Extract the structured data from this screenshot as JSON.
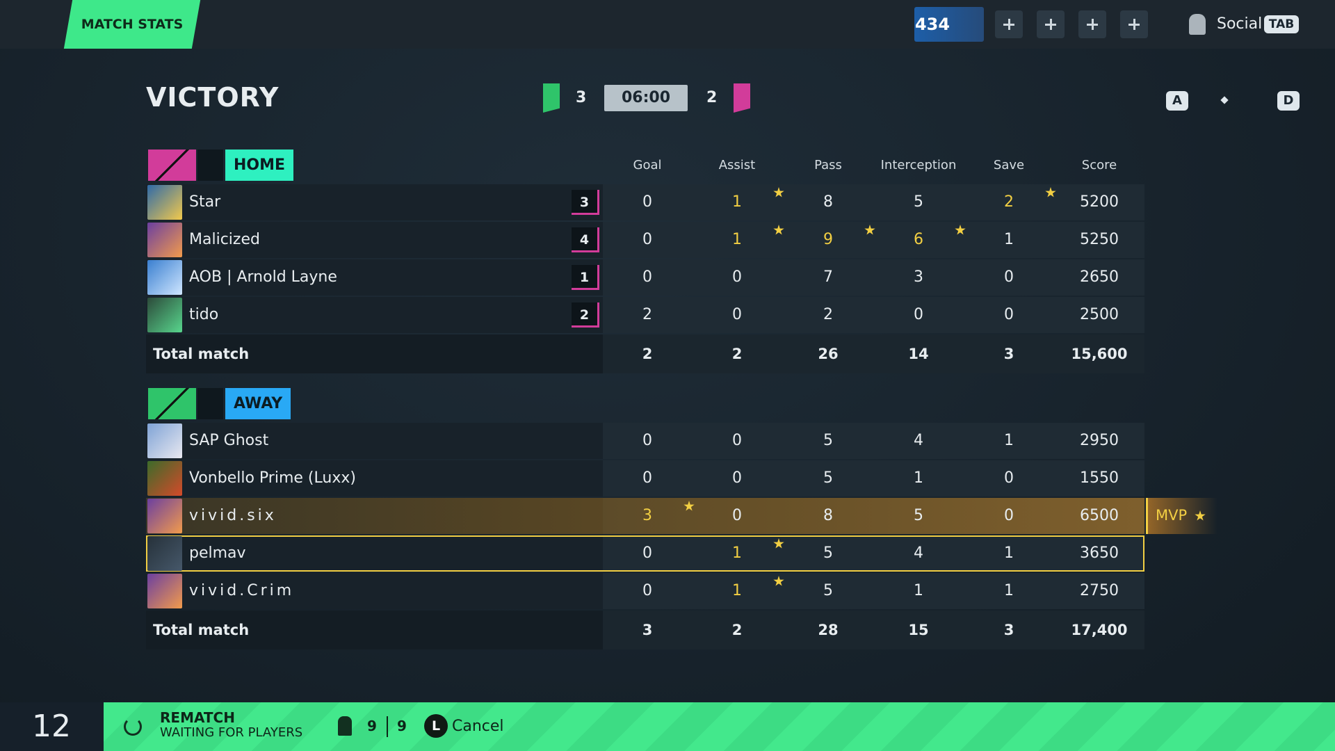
{
  "header": {
    "tab": "MATCH STATS",
    "level": 434,
    "social": "Social",
    "social_key": "TAB"
  },
  "result": {
    "title": "VICTORY",
    "home_score": 3,
    "time": "06:00",
    "away_score": 2
  },
  "controls": {
    "key_left": "A",
    "key_right": "D"
  },
  "columns": [
    "Goal",
    "Assist",
    "Pass",
    "Interception",
    "Save",
    "Score"
  ],
  "mvp_label": "MVP",
  "home": {
    "label": "HOME",
    "total_label": "Total match",
    "totals": [
      2,
      2,
      26,
      14,
      3,
      "15,600"
    ],
    "players": [
      {
        "name": "Star",
        "level": 3,
        "stats": [
          0,
          1,
          8,
          5,
          2,
          5200
        ],
        "highlights": [
          1,
          4
        ]
      },
      {
        "name": "Malicized",
        "level": 4,
        "stats": [
          0,
          1,
          9,
          6,
          1,
          5250
        ],
        "highlights": [
          1,
          2,
          3
        ]
      },
      {
        "name": "AOB | Arnold Layne",
        "level": 1,
        "stats": [
          0,
          0,
          7,
          3,
          0,
          2650
        ],
        "highlights": []
      },
      {
        "name": "tido",
        "level": 2,
        "stats": [
          2,
          0,
          2,
          0,
          0,
          2500
        ],
        "highlights": []
      }
    ]
  },
  "away": {
    "label": "AWAY",
    "total_label": "Total match",
    "totals": [
      3,
      2,
      28,
      15,
      3,
      "17,400"
    ],
    "players": [
      {
        "name": "SAP Ghost",
        "stats": [
          0,
          0,
          5,
          4,
          1,
          2950
        ],
        "highlights": []
      },
      {
        "name": "Vonbello Prime (Luxx)",
        "stats": [
          0,
          0,
          5,
          1,
          0,
          1550
        ],
        "highlights": []
      },
      {
        "name": "vivid.six",
        "stats": [
          3,
          0,
          8,
          5,
          0,
          6500
        ],
        "highlights": [
          0
        ],
        "mvp": true
      },
      {
        "name": "pelmav",
        "stats": [
          0,
          1,
          5,
          4,
          1,
          3650
        ],
        "highlights": [
          1
        ],
        "selected": true
      },
      {
        "name": "vivid.Crim",
        "stats": [
          0,
          1,
          5,
          1,
          1,
          2750
        ],
        "highlights": [
          1
        ]
      }
    ]
  },
  "footer": {
    "countdown": 12,
    "rematch": "REMATCH",
    "status": "WAITING FOR PLAYERS",
    "ready": 9,
    "total": 9,
    "cancel_key": "L",
    "cancel": "Cancel"
  }
}
